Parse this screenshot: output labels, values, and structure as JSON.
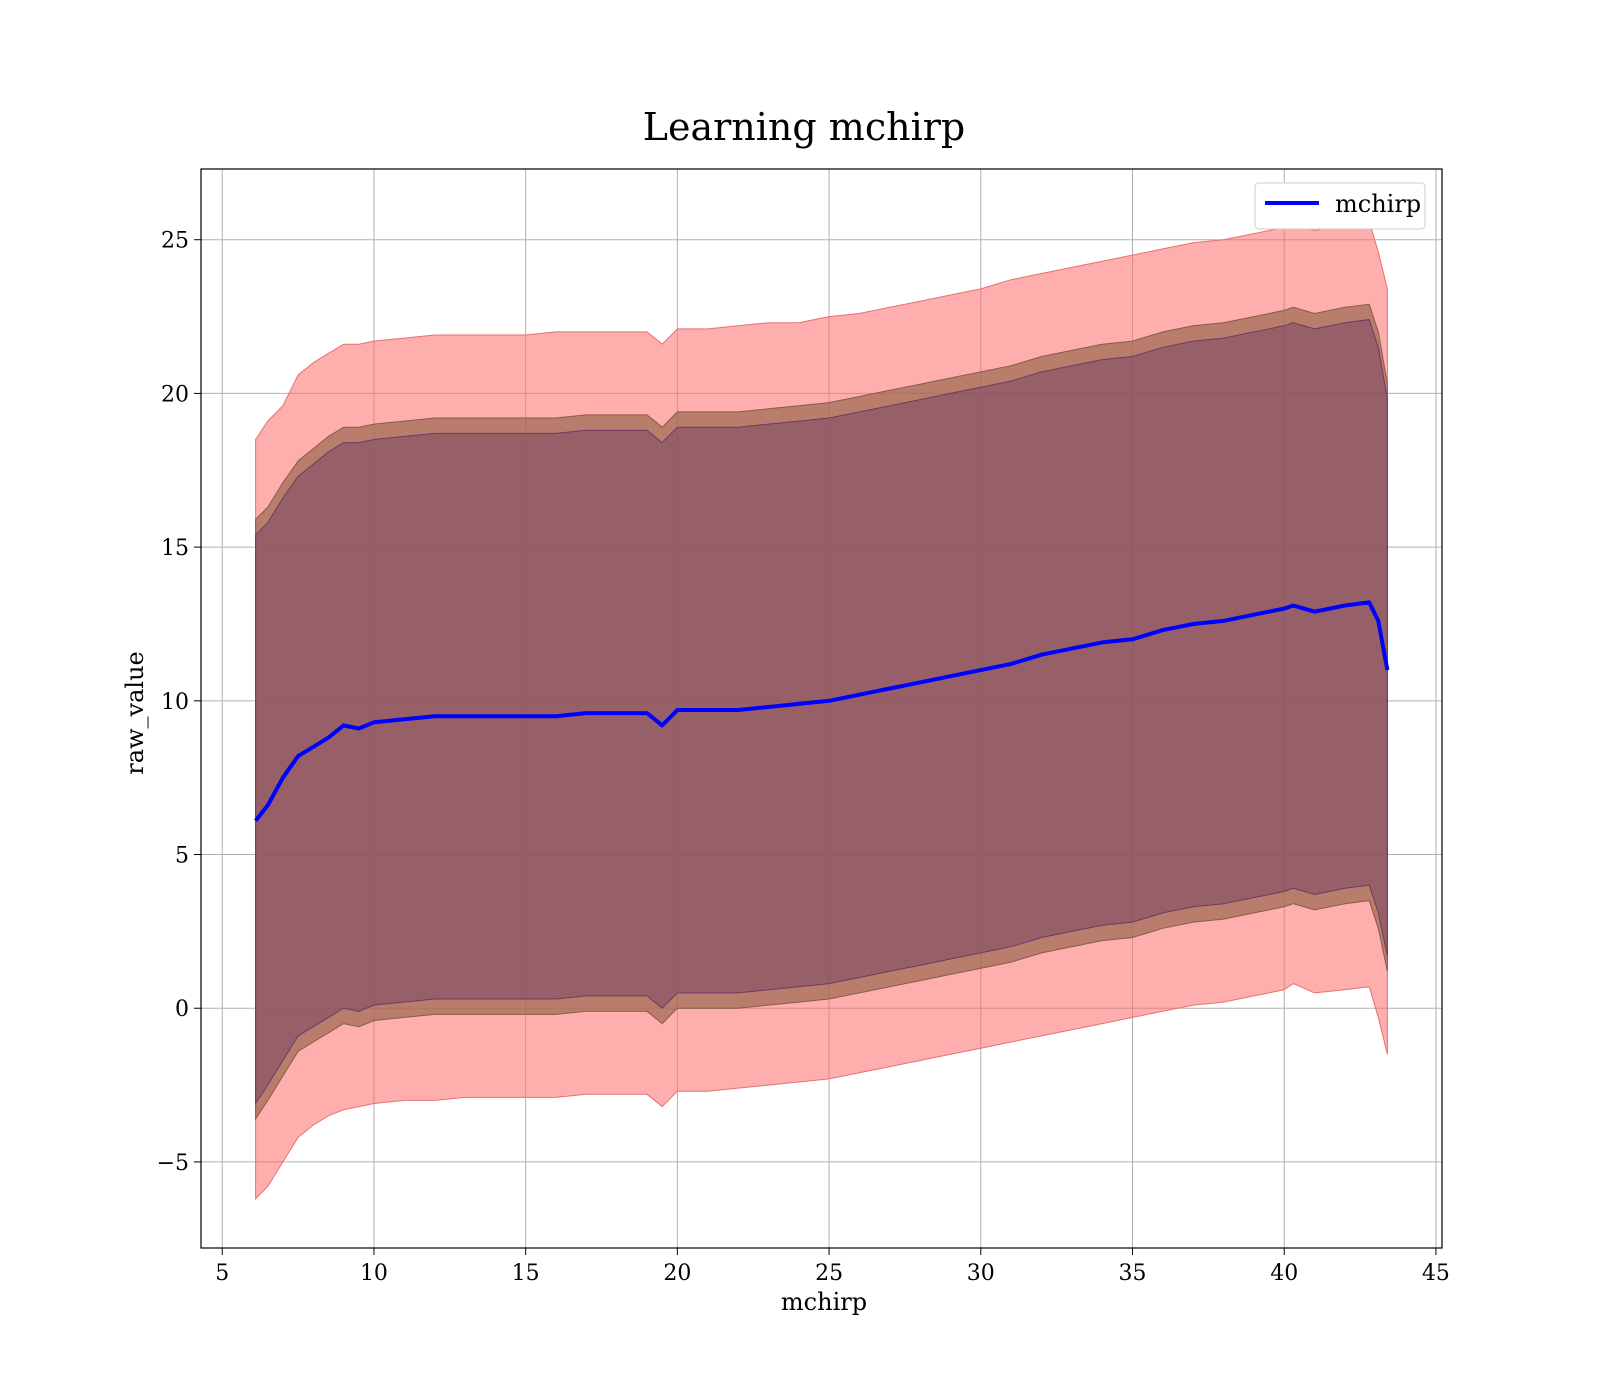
{
  "chart_data": {
    "type": "line",
    "title": "Learning mchirp",
    "xlabel": "mchirp",
    "ylabel": "raw_value",
    "xlim": [
      4.3,
      45.2
    ],
    "ylim": [
      -7.8,
      27.3
    ],
    "xticks": [
      5,
      10,
      15,
      20,
      25,
      30,
      35,
      40,
      45
    ],
    "yticks": [
      -5,
      0,
      5,
      10,
      15,
      20,
      25
    ],
    "ytick_labels": [
      "−5",
      "0",
      "5",
      "10",
      "15",
      "20",
      "25"
    ],
    "grid": true,
    "legend": {
      "position": "top-right",
      "entries": [
        "mchirp"
      ]
    },
    "colors": {
      "line": "#0000ff",
      "outer_band": "#ff9a9a",
      "band_overlap": "#a07078",
      "frame": "#000000",
      "grid": "#b0b0b0"
    },
    "x": [
      6.1,
      6.5,
      7.0,
      7.5,
      8.0,
      8.5,
      9.0,
      9.5,
      10.0,
      11.0,
      12.0,
      13.0,
      14.0,
      15.0,
      16.0,
      17.0,
      18.0,
      19.0,
      19.5,
      20.0,
      21.0,
      22.0,
      23.0,
      24.0,
      25.0,
      26.0,
      27.0,
      28.0,
      29.0,
      30.0,
      31.0,
      32.0,
      33.0,
      34.0,
      35.0,
      36.0,
      37.0,
      38.0,
      39.0,
      40.0,
      40.3,
      41.0,
      42.0,
      42.8,
      43.1,
      43.4
    ],
    "series": [
      {
        "name": "mchirp",
        "role": "mean",
        "values": [
          6.1,
          6.6,
          7.5,
          8.2,
          8.5,
          8.8,
          9.2,
          9.1,
          9.3,
          9.4,
          9.5,
          9.5,
          9.5,
          9.5,
          9.5,
          9.6,
          9.6,
          9.6,
          9.2,
          9.7,
          9.7,
          9.7,
          9.8,
          9.9,
          10.0,
          10.2,
          10.4,
          10.6,
          10.8,
          11.0,
          11.2,
          11.5,
          11.7,
          11.9,
          12.0,
          12.3,
          12.5,
          12.6,
          12.8,
          13.0,
          13.1,
          12.9,
          13.1,
          13.2,
          12.6,
          11.0
        ]
      },
      {
        "name": "",
        "role": "outer band upper",
        "values": [
          18.5,
          19.1,
          19.6,
          20.6,
          21.0,
          21.3,
          21.6,
          21.6,
          21.7,
          21.8,
          21.9,
          21.9,
          21.9,
          21.9,
          22.0,
          22.0,
          22.0,
          22.0,
          21.6,
          22.1,
          22.1,
          22.2,
          22.3,
          22.3,
          22.5,
          22.6,
          22.8,
          23.0,
          23.2,
          23.4,
          23.7,
          23.9,
          24.1,
          24.3,
          24.5,
          24.7,
          24.9,
          25.0,
          25.2,
          25.4,
          25.5,
          25.3,
          25.5,
          25.6,
          24.6,
          23.4
        ]
      },
      {
        "name": "",
        "role": "outer band lower",
        "values": [
          -6.2,
          -5.8,
          -5.0,
          -4.2,
          -3.8,
          -3.5,
          -3.3,
          -3.2,
          -3.1,
          -3.0,
          -3.0,
          -2.9,
          -2.9,
          -2.9,
          -2.9,
          -2.8,
          -2.8,
          -2.8,
          -3.2,
          -2.7,
          -2.7,
          -2.6,
          -2.5,
          -2.4,
          -2.3,
          -2.1,
          -1.9,
          -1.7,
          -1.5,
          -1.3,
          -1.1,
          -0.9,
          -0.7,
          -0.5,
          -0.3,
          -0.1,
          0.1,
          0.2,
          0.4,
          0.6,
          0.8,
          0.5,
          0.6,
          0.7,
          -0.3,
          -1.5
        ]
      },
      {
        "name": "",
        "role": "middle band upper",
        "values": [
          15.9,
          16.3,
          17.1,
          17.8,
          18.2,
          18.6,
          18.9,
          18.9,
          19.0,
          19.1,
          19.2,
          19.2,
          19.2,
          19.2,
          19.2,
          19.3,
          19.3,
          19.3,
          18.9,
          19.4,
          19.4,
          19.4,
          19.5,
          19.6,
          19.7,
          19.9,
          20.1,
          20.3,
          20.5,
          20.7,
          20.9,
          21.2,
          21.4,
          21.6,
          21.7,
          22.0,
          22.2,
          22.3,
          22.5,
          22.7,
          22.8,
          22.6,
          22.8,
          22.9,
          22.0,
          20.3
        ]
      },
      {
        "name": "",
        "role": "middle band lower",
        "values": [
          -3.6,
          -3.0,
          -2.2,
          -1.4,
          -1.1,
          -0.8,
          -0.5,
          -0.6,
          -0.4,
          -0.3,
          -0.2,
          -0.2,
          -0.2,
          -0.2,
          -0.2,
          -0.1,
          -0.1,
          -0.1,
          -0.5,
          0.0,
          0.0,
          0.0,
          0.1,
          0.2,
          0.3,
          0.5,
          0.7,
          0.9,
          1.1,
          1.3,
          1.5,
          1.8,
          2.0,
          2.2,
          2.3,
          2.6,
          2.8,
          2.9,
          3.1,
          3.3,
          3.4,
          3.2,
          3.4,
          3.5,
          2.6,
          1.2
        ]
      },
      {
        "name": "",
        "role": "inner band upper",
        "values": [
          15.4,
          15.8,
          16.6,
          17.3,
          17.7,
          18.1,
          18.4,
          18.4,
          18.5,
          18.6,
          18.7,
          18.7,
          18.7,
          18.7,
          18.7,
          18.8,
          18.8,
          18.8,
          18.4,
          18.9,
          18.9,
          18.9,
          19.0,
          19.1,
          19.2,
          19.4,
          19.6,
          19.8,
          20.0,
          20.2,
          20.4,
          20.7,
          20.9,
          21.1,
          21.2,
          21.5,
          21.7,
          21.8,
          22.0,
          22.2,
          22.3,
          22.1,
          22.3,
          22.4,
          21.5,
          19.8
        ]
      },
      {
        "name": "",
        "role": "inner band lower",
        "values": [
          -3.1,
          -2.5,
          -1.7,
          -0.9,
          -0.6,
          -0.3,
          0.0,
          -0.1,
          0.1,
          0.2,
          0.3,
          0.3,
          0.3,
          0.3,
          0.3,
          0.4,
          0.4,
          0.4,
          0.0,
          0.5,
          0.5,
          0.5,
          0.6,
          0.7,
          0.8,
          1.0,
          1.2,
          1.4,
          1.6,
          1.8,
          2.0,
          2.3,
          2.5,
          2.7,
          2.8,
          3.1,
          3.3,
          3.4,
          3.6,
          3.8,
          3.9,
          3.7,
          3.9,
          4.0,
          3.1,
          1.7
        ]
      }
    ]
  }
}
